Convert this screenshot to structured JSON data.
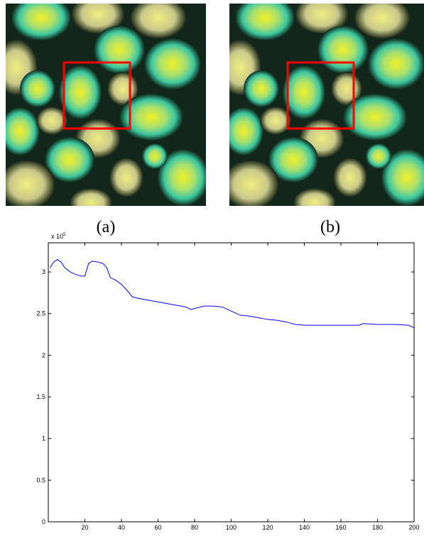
{
  "panels": [
    {
      "caption": "(a)"
    },
    {
      "caption": "(b)"
    }
  ],
  "chart_data": {
    "type": "line",
    "multiplier": "x 10",
    "multiplier_exponent": "5",
    "x": [
      1,
      3,
      5,
      7,
      9,
      12,
      15,
      18,
      20,
      22,
      24,
      27,
      30,
      32,
      34,
      37,
      40,
      43,
      46,
      50,
      55,
      60,
      65,
      70,
      75,
      78,
      80,
      85,
      90,
      95,
      100,
      105,
      110,
      115,
      120,
      125,
      130,
      135,
      140,
      150,
      160,
      170,
      172,
      180,
      190,
      197,
      200
    ],
    "values": [
      3.05,
      3.12,
      3.15,
      3.12,
      3.05,
      3.0,
      2.97,
      2.95,
      2.95,
      3.1,
      3.13,
      3.12,
      3.1,
      3.05,
      2.93,
      2.9,
      2.85,
      2.78,
      2.7,
      2.68,
      2.66,
      2.64,
      2.62,
      2.6,
      2.58,
      2.55,
      2.56,
      2.59,
      2.59,
      2.58,
      2.53,
      2.48,
      2.47,
      2.45,
      2.43,
      2.42,
      2.4,
      2.37,
      2.36,
      2.36,
      2.36,
      2.36,
      2.38,
      2.37,
      2.37,
      2.36,
      2.33
    ],
    "color": "#0000ff",
    "xlim": [
      0,
      200
    ],
    "xticks": [
      20,
      40,
      60,
      80,
      100,
      120,
      140,
      160,
      180,
      200
    ],
    "ylim": [
      0,
      3.35
    ],
    "yticks": [
      0,
      0.5,
      1,
      1.5,
      2,
      2.5,
      3
    ]
  }
}
